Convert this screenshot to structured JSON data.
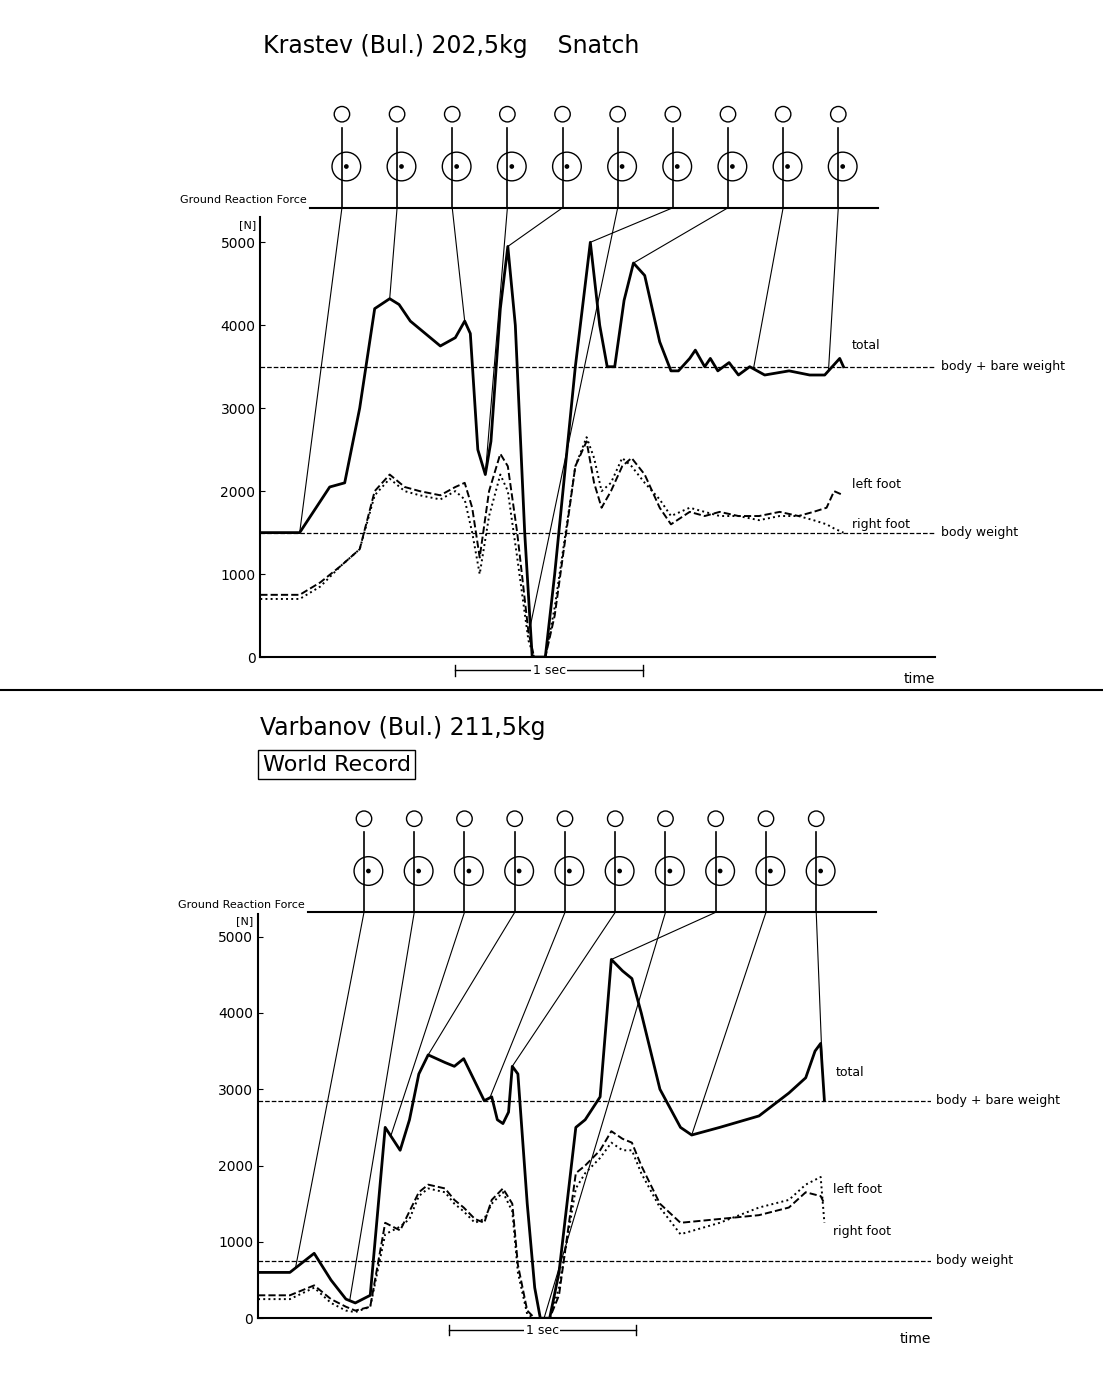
{
  "chart_data": [
    {
      "type": "line",
      "title": "Krastev (Bul.) 202,5kg    Snatch",
      "y_label": "Ground Reaction Force",
      "y_unit_label": "[N]",
      "x_label": "time",
      "xlim": [
        0,
        3.6
      ],
      "ylim": [
        0,
        5300
      ],
      "yticks": [
        0,
        1000,
        2000,
        3000,
        4000,
        5000
      ],
      "tick_labels": "y",
      "grid": false,
      "series": [
        {
          "name": "total",
          "color": "#000000",
          "line_style": "solid",
          "x": [
            0,
            0.21,
            0.37,
            0.45,
            0.53,
            0.61,
            0.69,
            0.74,
            0.8,
            0.96,
            1.04,
            1.09,
            1.12,
            1.16,
            1.2,
            1.23,
            1.28,
            1.32,
            1.36,
            1.41,
            1.45,
            1.52,
            1.57,
            1.68,
            1.76,
            1.81,
            1.85,
            1.89,
            1.94,
            1.99,
            2.05,
            2.13,
            2.19,
            2.23,
            2.29,
            2.32,
            2.37,
            2.4,
            2.44,
            2.5,
            2.55,
            2.61,
            2.69,
            2.82,
            2.93,
            3.01,
            3.09,
            3.11
          ],
          "values": [
            1500,
            1500,
            2050,
            2100,
            3000,
            4200,
            4320,
            4250,
            4050,
            3750,
            3850,
            4050,
            3900,
            2500,
            2200,
            2600,
            4200,
            4950,
            4000,
            1500,
            0,
            0,
            1000,
            3500,
            5000,
            4000,
            3500,
            3500,
            4300,
            4750,
            4600,
            3800,
            3450,
            3450,
            3600,
            3700,
            3500,
            3600,
            3450,
            3550,
            3400,
            3500,
            3400,
            3450,
            3400,
            3400,
            3600,
            3500
          ]
        },
        {
          "name": "left foot",
          "color": "#000000",
          "line_style": "dashed",
          "x": [
            0,
            0.21,
            0.32,
            0.43,
            0.53,
            0.61,
            0.69,
            0.77,
            0.85,
            0.96,
            1.04,
            1.09,
            1.13,
            1.17,
            1.22,
            1.28,
            1.32,
            1.37,
            1.43,
            1.46,
            1.52,
            1.57,
            1.68,
            1.74,
            1.78,
            1.82,
            1.87,
            1.93,
            1.98,
            2.05,
            2.13,
            2.19,
            2.29,
            2.37,
            2.45,
            2.55,
            2.66,
            2.77,
            2.87,
            2.95,
            3.02,
            3.06,
            3.11
          ],
          "values": [
            750,
            750,
            900,
            1100,
            1300,
            2000,
            2200,
            2050,
            2000,
            1950,
            2050,
            2100,
            1800,
            1200,
            2000,
            2450,
            2300,
            1500,
            300,
            0,
            0,
            500,
            2300,
            2600,
            2100,
            1800,
            2000,
            2300,
            2400,
            2200,
            1800,
            1600,
            1750,
            1700,
            1750,
            1700,
            1700,
            1750,
            1700,
            1750,
            1800,
            2000,
            1950
          ]
        },
        {
          "name": "right foot",
          "color": "#000000",
          "line_style": "dotted",
          "x": [
            0,
            0.21,
            0.32,
            0.43,
            0.53,
            0.61,
            0.69,
            0.77,
            0.85,
            0.96,
            1.04,
            1.09,
            1.13,
            1.17,
            1.22,
            1.28,
            1.32,
            1.37,
            1.43,
            1.46,
            1.52,
            1.57,
            1.68,
            1.74,
            1.78,
            1.82,
            1.87,
            1.93,
            1.98,
            2.05,
            2.13,
            2.19,
            2.29,
            2.37,
            2.45,
            2.55,
            2.66,
            2.77,
            2.87,
            2.95,
            3.02,
            3.06,
            3.11
          ],
          "values": [
            700,
            700,
            850,
            1100,
            1300,
            1950,
            2150,
            2000,
            1950,
            1900,
            2000,
            1900,
            1500,
            1000,
            1700,
            2200,
            2000,
            1200,
            200,
            0,
            0,
            600,
            2300,
            2650,
            2400,
            2000,
            2100,
            2400,
            2300,
            2100,
            1900,
            1700,
            1800,
            1750,
            1700,
            1700,
            1650,
            1700,
            1700,
            1650,
            1600,
            1550,
            1500
          ]
        }
      ],
      "reference_lines": [
        {
          "name": "body + bare weight",
          "value": 3500,
          "line_style": "dashed"
        },
        {
          "name": "body weight",
          "value": 1500,
          "line_style": "dashed"
        }
      ],
      "scale_bar": {
        "label": "1 sec",
        "start": 1.04,
        "length": 1
      },
      "phases": [
        0.21,
        0.69,
        1.09,
        1.2,
        1.32,
        1.44,
        1.76,
        1.99,
        2.63,
        3.03
      ]
    },
    {
      "type": "line",
      "title": "Varbanov (Bul.) 211,5kg",
      "subtitle": "World Record",
      "y_label": "Ground Reaction Force",
      "y_unit_label": "[N]",
      "x_label": "time",
      "xlim": [
        0,
        3.6
      ],
      "ylim": [
        0,
        5300
      ],
      "yticks": [
        0,
        1000,
        2000,
        3000,
        4000,
        5000
      ],
      "tick_labels": "y",
      "grid": false,
      "series": [
        {
          "name": "total",
          "color": "#000000",
          "line_style": "solid",
          "x": [
            0,
            0.17,
            0.3,
            0.39,
            0.47,
            0.52,
            0.6,
            0.68,
            0.76,
            0.81,
            0.86,
            0.91,
            1.0,
            1.05,
            1.1,
            1.16,
            1.21,
            1.25,
            1.28,
            1.31,
            1.34,
            1.36,
            1.39,
            1.44,
            1.48,
            1.51,
            1.56,
            1.61,
            1.7,
            1.75,
            1.83,
            1.89,
            1.95,
            2.0,
            2.05,
            2.15,
            2.26,
            2.32,
            2.47,
            2.68,
            2.84,
            2.93,
            2.98,
            3.01,
            3.03
          ],
          "values": [
            600,
            600,
            850,
            500,
            250,
            200,
            300,
            2500,
            2200,
            2600,
            3200,
            3450,
            3350,
            3300,
            3400,
            3100,
            2850,
            2900,
            2600,
            2550,
            2700,
            3300,
            3200,
            1500,
            400,
            0,
            0,
            600,
            2500,
            2600,
            2900,
            4700,
            4550,
            4450,
            4000,
            3000,
            2500,
            2400,
            2500,
            2650,
            2950,
            3150,
            3500,
            3600,
            2850
          ]
        },
        {
          "name": "left foot",
          "color": "#000000",
          "line_style": "dashed",
          "x": [
            0,
            0.17,
            0.3,
            0.39,
            0.47,
            0.52,
            0.6,
            0.68,
            0.76,
            0.81,
            0.86,
            0.91,
            1.0,
            1.05,
            1.1,
            1.16,
            1.21,
            1.25,
            1.31,
            1.36,
            1.39,
            1.44,
            1.48,
            1.51,
            1.56,
            1.61,
            1.7,
            1.75,
            1.83,
            1.89,
            1.95,
            2.0,
            2.05,
            2.15,
            2.26,
            2.47,
            2.68,
            2.84,
            2.93,
            3.01,
            3.03
          ],
          "values": [
            300,
            300,
            430,
            250,
            150,
            100,
            150,
            1250,
            1150,
            1400,
            1650,
            1750,
            1700,
            1550,
            1450,
            1300,
            1250,
            1550,
            1700,
            1500,
            700,
            100,
            0,
            0,
            0,
            300,
            1900,
            2000,
            2200,
            2450,
            2350,
            2300,
            2000,
            1500,
            1250,
            1300,
            1350,
            1450,
            1650,
            1600,
            1500
          ]
        },
        {
          "name": "right foot",
          "color": "#000000",
          "line_style": "dotted",
          "x": [
            0,
            0.17,
            0.3,
            0.39,
            0.47,
            0.52,
            0.6,
            0.68,
            0.76,
            0.81,
            0.86,
            0.91,
            1.0,
            1.05,
            1.1,
            1.16,
            1.21,
            1.25,
            1.31,
            1.36,
            1.39,
            1.44,
            1.48,
            1.51,
            1.56,
            1.61,
            1.7,
            1.75,
            1.83,
            1.89,
            1.95,
            2.0,
            2.05,
            2.15,
            2.26,
            2.47,
            2.68,
            2.84,
            2.93,
            3.01,
            3.03
          ],
          "values": [
            250,
            250,
            400,
            200,
            100,
            80,
            150,
            1100,
            1200,
            1300,
            1600,
            1700,
            1650,
            1500,
            1400,
            1250,
            1300,
            1500,
            1650,
            1400,
            600,
            50,
            0,
            0,
            0,
            400,
            1700,
            1900,
            2100,
            2300,
            2200,
            2200,
            1900,
            1450,
            1100,
            1250,
            1450,
            1550,
            1750,
            1850,
            1250
          ]
        }
      ],
      "reference_lines": [
        {
          "name": "body + bare weight",
          "value": 2850,
          "line_style": "dashed"
        },
        {
          "name": "body weight",
          "value": 750,
          "line_style": "dashed"
        }
      ],
      "scale_bar": {
        "label": "1 sec",
        "start": 1.02,
        "length": 1
      },
      "phases": [
        0.2,
        0.49,
        0.71,
        0.91,
        1.24,
        1.36,
        1.53,
        1.89,
        2.32,
        3.02
      ]
    }
  ]
}
